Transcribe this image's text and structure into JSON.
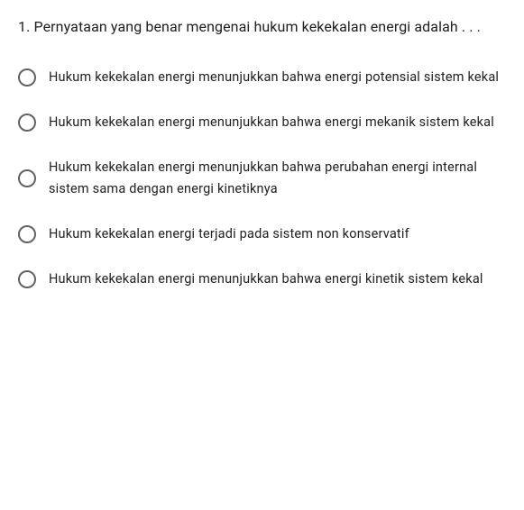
{
  "question": {
    "text": "1. Pernyataan yang benar mengenai hukum kekekalan energi adalah . . .",
    "fontsize": 16,
    "color": "#202124"
  },
  "options": [
    {
      "text": "Hukum kekekalan energi menunjukkan bahwa energi potensial sistem kekal",
      "selected": false
    },
    {
      "text": "Hukum kekekalan energi menunjukkan bahwa energi mekanik sistem kekal",
      "selected": false
    },
    {
      "text": "Hukum kekekalan energi menunjukkan bahwa perubahan energi internal sistem sama dengan energi kinetiknya",
      "selected": false
    },
    {
      "text": "Hukum kekekalan energi terjadi pada sistem non konservatif",
      "selected": false
    },
    {
      "text": "Hukum kekekalan energi menunjukkan bahwa energi kinetik sistem kekal",
      "selected": false
    }
  ],
  "styling": {
    "background_color": "#ffffff",
    "text_color": "#202124",
    "radio_border_color": "#5f6368",
    "option_fontsize": 14.5,
    "line_height": 24,
    "font_family": "Roboto, Arial, sans-serif"
  }
}
